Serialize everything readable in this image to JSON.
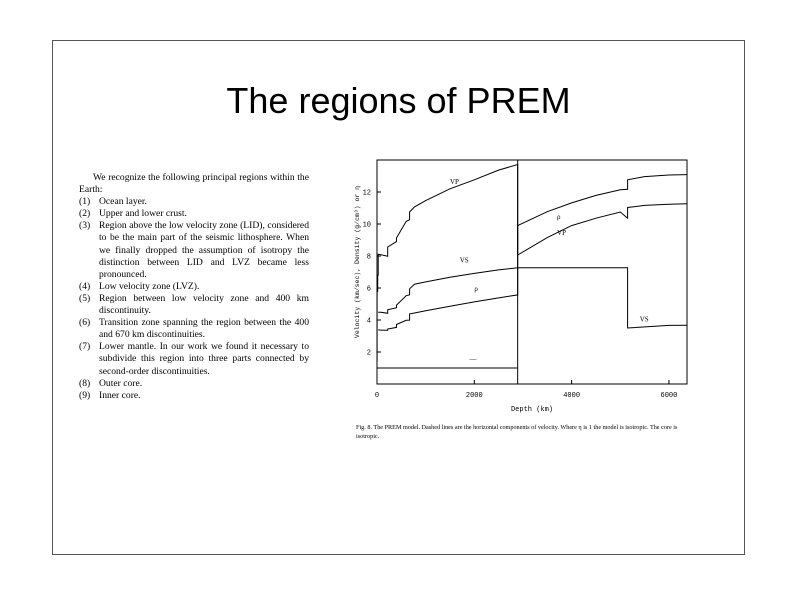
{
  "slide": {
    "title": "The regions of PREM",
    "intro": "We recognize the following principal regions within the Earth:",
    "regions": [
      {
        "num": "(1)",
        "text": "Ocean layer."
      },
      {
        "num": "(2)",
        "text": "Upper and lower crust."
      },
      {
        "num": "(3)",
        "text": "Region above the low velocity zone (LID), considered to be the main part of the seismic lithosphere. When we finally dropped the assumption of isotropy the distinction between LID and LVZ became less pronounced."
      },
      {
        "num": "(4)",
        "text": "Low velocity zone (LVZ)."
      },
      {
        "num": "(5)",
        "text": "Region between low velocity zone and 400 km discontinuity."
      },
      {
        "num": "(6)",
        "text": "Transition zone spanning the region between the 400 and 670 km discontinuities."
      },
      {
        "num": "(7)",
        "text": "Lower mantle. In our work we found it necessary to subdivide this region into three parts connected by second-order discontinuities."
      },
      {
        "num": "(8)",
        "text": "Outer core."
      },
      {
        "num": "(9)",
        "text": "Inner core."
      }
    ],
    "caption": "Fig. 8. The PREM model. Dashed lines are the horizontal components of velocity. Where η is 1 the model is isotropic. The core is isotropic."
  },
  "chart_data": {
    "type": "line",
    "xlabel": "Depth (km)",
    "ylabel": "Velocity (km/sec), Density (g/cm³) or η",
    "xlim": [
      0,
      6371
    ],
    "ylim": [
      0,
      14
    ],
    "xticks": [
      0,
      2000,
      4000,
      6000
    ],
    "yticks": [
      2,
      4,
      6,
      8,
      10,
      12
    ],
    "xtick_labels": [
      "0",
      "2000",
      "4000",
      "6000"
    ],
    "ytick_labels": [
      "2",
      "4",
      "6",
      "8",
      "10",
      "12"
    ],
    "series": [
      {
        "name": "Vp",
        "points": [
          [
            0,
            1.45
          ],
          [
            3,
            1.45
          ],
          [
            3,
            5.8
          ],
          [
            15,
            5.8
          ],
          [
            15,
            6.8
          ],
          [
            24,
            6.8
          ],
          [
            24,
            8.11
          ],
          [
            80,
            8.08
          ],
          [
            220,
            7.99
          ],
          [
            220,
            8.56
          ],
          [
            400,
            8.9
          ],
          [
            400,
            9.13
          ],
          [
            600,
            10.16
          ],
          [
            670,
            10.27
          ],
          [
            670,
            10.75
          ],
          [
            771,
            11.07
          ],
          [
            1000,
            11.46
          ],
          [
            1500,
            12.2
          ],
          [
            2000,
            12.76
          ],
          [
            2500,
            13.37
          ],
          [
            2891,
            13.72
          ],
          [
            2891,
            8.06
          ],
          [
            3500,
            9.15
          ],
          [
            4000,
            9.9
          ],
          [
            4500,
            10.36
          ],
          [
            5000,
            10.75
          ],
          [
            5150,
            10.36
          ],
          [
            5150,
            11.03
          ],
          [
            5500,
            11.16
          ],
          [
            6000,
            11.24
          ],
          [
            6371,
            11.26
          ]
        ]
      },
      {
        "name": "Vs",
        "points": [
          [
            24,
            4.49
          ],
          [
            80,
            4.48
          ],
          [
            220,
            4.42
          ],
          [
            220,
            4.64
          ],
          [
            400,
            4.77
          ],
          [
            400,
            4.93
          ],
          [
            600,
            5.52
          ],
          [
            670,
            5.57
          ],
          [
            670,
            5.95
          ],
          [
            771,
            6.24
          ],
          [
            1000,
            6.38
          ],
          [
            1500,
            6.67
          ],
          [
            2000,
            6.91
          ],
          [
            2500,
            7.13
          ],
          [
            2891,
            7.26
          ],
          [
            5150,
            7.26
          ],
          [
            5150,
            3.5
          ],
          [
            6000,
            3.66
          ],
          [
            6371,
            3.67
          ]
        ]
      },
      {
        "name": "ρ",
        "points": [
          [
            24,
            3.38
          ],
          [
            80,
            3.37
          ],
          [
            220,
            3.36
          ],
          [
            220,
            3.44
          ],
          [
            400,
            3.54
          ],
          [
            400,
            3.72
          ],
          [
            600,
            3.98
          ],
          [
            670,
            3.99
          ],
          [
            670,
            4.38
          ],
          [
            771,
            4.44
          ],
          [
            1000,
            4.58
          ],
          [
            1500,
            4.86
          ],
          [
            2000,
            5.13
          ],
          [
            2500,
            5.38
          ],
          [
            2891,
            5.57
          ],
          [
            2891,
            9.9
          ],
          [
            3500,
            10.77
          ],
          [
            4000,
            11.32
          ],
          [
            4500,
            11.79
          ],
          [
            5000,
            12.14
          ],
          [
            5150,
            12.17
          ],
          [
            5150,
            12.76
          ],
          [
            5500,
            12.96
          ],
          [
            6000,
            13.06
          ],
          [
            6371,
            13.09
          ]
        ]
      },
      {
        "name": "η",
        "points": [
          [
            0,
            1
          ],
          [
            2891,
            1
          ]
        ]
      }
    ],
    "labels": [
      {
        "text": "VP",
        "x": 1500,
        "y": 12.5
      },
      {
        "text": "VS",
        "x": 1700,
        "y": 7.6
      },
      {
        "text": "ρ",
        "x": 2000,
        "y": 5.8
      },
      {
        "text": "—",
        "x": 1900,
        "y": 1.4
      },
      {
        "text": "ρ",
        "x": 3700,
        "y": 10.3
      },
      {
        "text": "VP",
        "x": 3700,
        "y": 9.3
      },
      {
        "text": "VS",
        "x": 5400,
        "y": 3.9
      }
    ],
    "grid": false
  }
}
